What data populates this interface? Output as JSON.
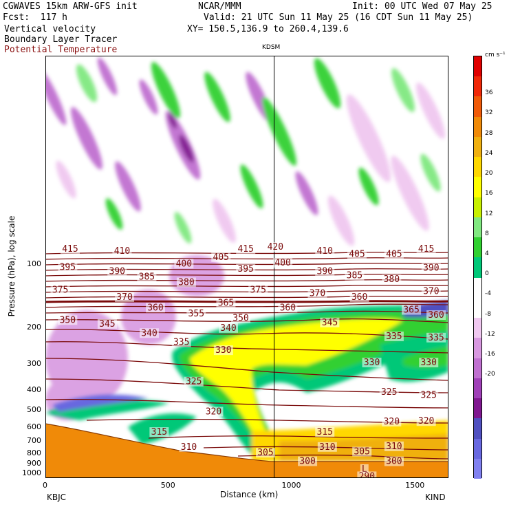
{
  "header": {
    "title_left": "CGWAVES 15km ARW-GFS init",
    "title_center": "NCAR/MMM",
    "init": "Init: 00 UTC Wed 07 May 25",
    "fcst": "Fcst:  117 h",
    "valid": "Valid: 21 UTC Sun 11 May 25 (16 CDT Sun 11 May 25)",
    "xy": "XY= 150.5,136.9 to 260.4,139.6",
    "field1": "Vertical velocity",
    "field2": "Boundary Layer Tracer",
    "field3": "Potential Temperature",
    "station_mark": "KDSM"
  },
  "colors": {
    "theta": "#7a0a0a",
    "terrain": "#f08a08"
  },
  "chart_data": {
    "type": "heatmap",
    "xlabel": "Distance (km)",
    "ylabel": "Pressure (hPa), log scale",
    "xlim": [
      0,
      1630
    ],
    "x_ticks": [
      {
        "v": 0,
        "label": "0"
      },
      {
        "v": 500,
        "label": "500"
      },
      {
        "v": 1000,
        "label": "1000"
      },
      {
        "v": 1500,
        "label": "1500"
      }
    ],
    "endpoints": {
      "left": "KBJC",
      "right": "KIND"
    },
    "y_ticks": [
      "100",
      "200",
      "300",
      "400",
      "500",
      "600",
      "700",
      "800",
      "900",
      "1000"
    ],
    "marker_km": 925,
    "colorbar": {
      "unit": "cm s⁻¹",
      "labels": [
        "36",
        "32",
        "28",
        "24",
        "20",
        "16",
        "12",
        "8",
        "4",
        "0",
        "-4",
        "-8",
        "-12",
        "-16",
        "-20"
      ],
      "colors": [
        "#e00000",
        "#f02808",
        "#f05a08",
        "#f08a08",
        "#f0b010",
        "#ffd800",
        "#ffff00",
        "#c8f000",
        "#80e880",
        "#30d030",
        "#00c878",
        "#ffffff",
        "#ffffff",
        "#f0c8f0",
        "#d898e0",
        "#c070d0",
        "#a040b8",
        "#801890",
        "#5050c0",
        "#6868e0",
        "#8080f0"
      ]
    },
    "theta_labels": [
      {
        "t": "415",
        "x": 100,
        "p": 86
      },
      {
        "t": "410",
        "x": 310,
        "p": 88
      },
      {
        "t": "415",
        "x": 810,
        "p": 86
      },
      {
        "t": "420",
        "x": 930,
        "p": 84
      },
      {
        "t": "410",
        "x": 1130,
        "p": 88
      },
      {
        "t": "405",
        "x": 1260,
        "p": 91
      },
      {
        "t": "405",
        "x": 1410,
        "p": 91
      },
      {
        "t": "415",
        "x": 1540,
        "p": 86
      },
      {
        "t": "395",
        "x": 90,
        "p": 105
      },
      {
        "t": "390",
        "x": 290,
        "p": 110
      },
      {
        "t": "400",
        "x": 560,
        "p": 101
      },
      {
        "t": "405",
        "x": 710,
        "p": 94
      },
      {
        "t": "395",
        "x": 810,
        "p": 107
      },
      {
        "t": "400",
        "x": 960,
        "p": 100
      },
      {
        "t": "390",
        "x": 1130,
        "p": 110
      },
      {
        "t": "385",
        "x": 1250,
        "p": 115
      },
      {
        "t": "380",
        "x": 1400,
        "p": 120
      },
      {
        "t": "390",
        "x": 1560,
        "p": 106
      },
      {
        "t": "375",
        "x": 60,
        "p": 135
      },
      {
        "t": "385",
        "x": 410,
        "p": 117
      },
      {
        "t": "380",
        "x": 570,
        "p": 124
      },
      {
        "t": "375",
        "x": 860,
        "p": 135
      },
      {
        "t": "370",
        "x": 1100,
        "p": 140
      },
      {
        "t": "370",
        "x": 1560,
        "p": 137
      },
      {
        "t": "370",
        "x": 320,
        "p": 146
      },
      {
        "t": "360",
        "x": 445,
        "p": 164
      },
      {
        "t": "365",
        "x": 730,
        "p": 156
      },
      {
        "t": "360",
        "x": 980,
        "p": 164
      },
      {
        "t": "360",
        "x": 1270,
        "p": 146
      },
      {
        "t": "365",
        "x": 1480,
        "p": 168
      },
      {
        "t": "360",
        "x": 1580,
        "p": 178
      },
      {
        "t": "350",
        "x": 90,
        "p": 188
      },
      {
        "t": "345",
        "x": 250,
        "p": 196
      },
      {
        "t": "355",
        "x": 610,
        "p": 175
      },
      {
        "t": "350",
        "x": 790,
        "p": 184
      },
      {
        "t": "345",
        "x": 1150,
        "p": 193
      },
      {
        "t": "340",
        "x": 420,
        "p": 217
      },
      {
        "t": "340",
        "x": 740,
        "p": 205
      },
      {
        "t": "335",
        "x": 550,
        "p": 240
      },
      {
        "t": "335",
        "x": 1410,
        "p": 225
      },
      {
        "t": "335",
        "x": 1580,
        "p": 228
      },
      {
        "t": "330",
        "x": 720,
        "p": 262
      },
      {
        "t": "330",
        "x": 1320,
        "p": 300
      },
      {
        "t": "330",
        "x": 1550,
        "p": 300
      },
      {
        "t": "325",
        "x": 600,
        "p": 370
      },
      {
        "t": "325",
        "x": 1390,
        "p": 415
      },
      {
        "t": "325",
        "x": 1550,
        "p": 430
      },
      {
        "t": "320",
        "x": 680,
        "p": 515
      },
      {
        "t": "320",
        "x": 1400,
        "p": 575
      },
      {
        "t": "320",
        "x": 1540,
        "p": 572
      },
      {
        "t": "315",
        "x": 460,
        "p": 645
      },
      {
        "t": "315",
        "x": 1130,
        "p": 645
      },
      {
        "t": "310",
        "x": 580,
        "p": 760
      },
      {
        "t": "310",
        "x": 1140,
        "p": 760
      },
      {
        "t": "310",
        "x": 1410,
        "p": 755
      },
      {
        "t": "305",
        "x": 890,
        "p": 810
      },
      {
        "t": "305",
        "x": 1280,
        "p": 800
      },
      {
        "t": "300",
        "x": 1060,
        "p": 890
      },
      {
        "t": "300",
        "x": 1410,
        "p": 890
      },
      {
        "t": "L",
        "x": 1290,
        "p": 970
      },
      {
        "t": "290",
        "x": 1300,
        "p": 1050
      }
    ]
  }
}
